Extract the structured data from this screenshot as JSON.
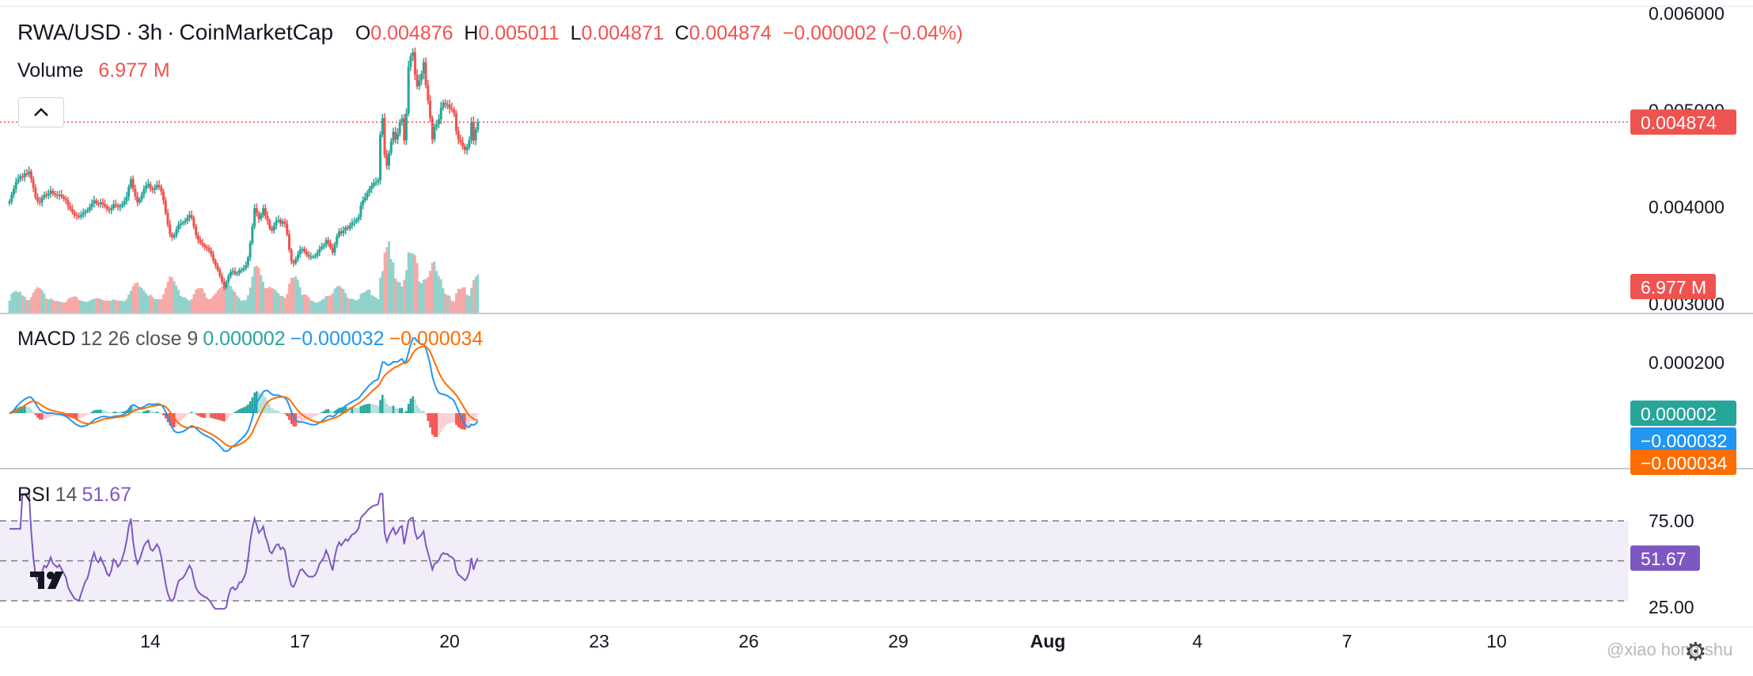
{
  "header": {
    "symbol": "RWA/USD",
    "interval": "3h",
    "source": "CoinMarketCap",
    "o_label": "O",
    "o_value": "0.004876",
    "h_label": "H",
    "h_value": "0.005011",
    "l_label": "L",
    "l_value": "0.004871",
    "c_label": "C",
    "c_value": "0.004874",
    "change": "−0.000002 (−0.04%)"
  },
  "volume_legend": {
    "label": "Volume",
    "value": "6.977 M"
  },
  "macd_legend": {
    "label": "MACD",
    "params": "12 26 close 9",
    "hist": "0.000002",
    "macd": "−0.000032",
    "signal": "−0.000034"
  },
  "rsi_legend": {
    "label": "RSI",
    "params": "14",
    "value": "51.67"
  },
  "price_axis": {
    "ticks": [
      "0.006000",
      "0.005000",
      "0.004000",
      "0.003000"
    ],
    "last_price_label": "0.004874",
    "volume_label": "6.977 M"
  },
  "macd_axis": {
    "ticks": [
      "0.000200"
    ],
    "labels": [
      "0.000002",
      "−0.000032",
      "−0.000034"
    ]
  },
  "rsi_axis": {
    "ticks": [
      "75.00",
      "25.00"
    ],
    "value_label": "51.67"
  },
  "time_axis": {
    "ticks": [
      "14",
      "17",
      "20",
      "23",
      "26",
      "29",
      "Aug",
      "4",
      "7",
      "10"
    ]
  },
  "watermark": "@xiao hong shu",
  "colors": {
    "up": "#26a69a",
    "down": "#ef5350",
    "macd": "#2196f3",
    "signal": "#ff6d00",
    "rsi": "#7e57c2",
    "text": "#131722",
    "grid": "#e6e6e6"
  },
  "chart_data": {
    "type": "candlestick",
    "title": "RWA/USD · 3h · CoinMarketCap",
    "x_ticks": [
      "14",
      "17",
      "20",
      "23",
      "26",
      "29",
      "Aug",
      "4",
      "7",
      "10"
    ],
    "candles_close": [
      0.00405,
      0.00412,
      0.00418,
      0.00425,
      0.00428,
      0.00431,
      0.0043,
      0.00434,
      0.00433,
      0.00436,
      0.00428,
      0.00419,
      0.00409,
      0.00405,
      0.00404,
      0.00409,
      0.00412,
      0.00411,
      0.00413,
      0.00416,
      0.00413,
      0.00412,
      0.00411,
      0.00412,
      0.0041,
      0.00408,
      0.00406,
      0.004,
      0.00397,
      0.00394,
      0.00391,
      0.0039,
      0.00389,
      0.00391,
      0.00393,
      0.00395,
      0.00396,
      0.00399,
      0.00403,
      0.00406,
      0.00403,
      0.00402,
      0.00404,
      0.00402,
      0.004,
      0.00397,
      0.00396,
      0.00398,
      0.00402,
      0.00401,
      0.00399,
      0.004,
      0.00402,
      0.00405,
      0.0041,
      0.0042,
      0.00428,
      0.00418,
      0.0041,
      0.00404,
      0.00407,
      0.00412,
      0.00418,
      0.00421,
      0.00423,
      0.00418,
      0.00417,
      0.00419,
      0.00422,
      0.0042,
      0.00415,
      0.00406,
      0.00393,
      0.00381,
      0.00371,
      0.00368,
      0.0037,
      0.00376,
      0.00381,
      0.00382,
      0.00383,
      0.00385,
      0.00388,
      0.00391,
      0.00388,
      0.00379,
      0.0037,
      0.00365,
      0.00362,
      0.0036,
      0.00358,
      0.00357,
      0.00354,
      0.0035,
      0.00344,
      0.00339,
      0.00334,
      0.00328,
      0.00322,
      0.00316,
      0.00322,
      0.00328,
      0.00332,
      0.00333,
      0.0033,
      0.00331,
      0.00334,
      0.00334,
      0.00336,
      0.00339,
      0.00347,
      0.00362,
      0.00379,
      0.00398,
      0.00393,
      0.00387,
      0.00391,
      0.00398,
      0.0039,
      0.00385,
      0.00377,
      0.00375,
      0.0038,
      0.00385,
      0.00386,
      0.00382,
      0.00384,
      0.00382,
      0.00371,
      0.00355,
      0.00343,
      0.00341,
      0.00345,
      0.0035,
      0.00355,
      0.00356,
      0.00353,
      0.0035,
      0.00348,
      0.00348,
      0.00348,
      0.00349,
      0.00352,
      0.00356,
      0.00358,
      0.0036,
      0.00365,
      0.00362,
      0.00357,
      0.00352,
      0.00361,
      0.00369,
      0.00374,
      0.00372,
      0.00375,
      0.00378,
      0.00377,
      0.0038,
      0.00383,
      0.00384,
      0.00386,
      0.00389,
      0.00401,
      0.00406,
      0.00409,
      0.00414,
      0.00418,
      0.00421,
      0.00424,
      0.00425,
      0.00427,
      0.00474,
      0.00491,
      0.00453,
      0.00442,
      0.00455,
      0.00467,
      0.00477,
      0.00469,
      0.00475,
      0.00487,
      0.00491,
      0.00468,
      0.00496,
      0.00544,
      0.00555,
      0.00559,
      0.00536,
      0.00524,
      0.0053,
      0.00537,
      0.00549,
      0.00525,
      0.00509,
      0.00491,
      0.00469,
      0.00482,
      0.00485,
      0.0049,
      0.00502,
      0.00507,
      0.00505,
      0.00505,
      0.00501,
      0.005,
      0.00496,
      0.00478,
      0.00469,
      0.00466,
      0.00462,
      0.00458,
      0.00461,
      0.00468,
      0.00487,
      0.00468,
      0.00479,
      0.00487
    ],
    "volume_unit": "M",
    "volume_last": 6.977,
    "macd_params": {
      "fast": 12,
      "slow": 26,
      "signal": 9
    },
    "macd_last": {
      "histogram": 2e-06,
      "macd": -3.2e-05,
      "signal": -3.4e-05
    },
    "rsi_period": 14,
    "rsi_last": 51.67,
    "rsi_levels": [
      75,
      50,
      25
    ],
    "price_range": [
      0.0029,
      0.00605
    ],
    "grid": true
  }
}
